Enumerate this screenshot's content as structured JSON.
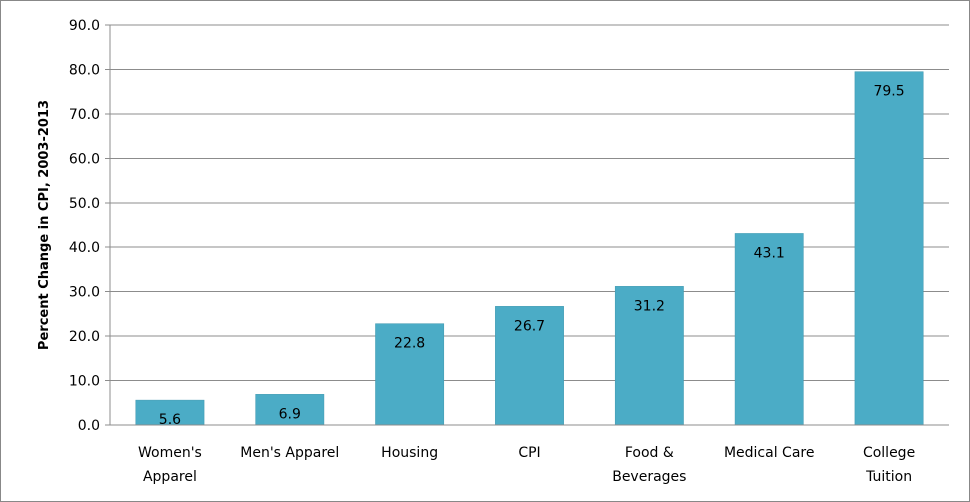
{
  "chart_data": {
    "type": "bar",
    "title": "",
    "xlabel": "",
    "ylabel": "Percent Change in CPI, 2003-2013",
    "ylim": [
      0,
      90
    ],
    "yticks": [
      "0.0",
      "10.0",
      "20.0",
      "30.0",
      "40.0",
      "50.0",
      "60.0",
      "70.0",
      "80.0",
      "90.0"
    ],
    "grid": "horizontal",
    "legend": "none",
    "bar_color": "#4bacc6",
    "categories": [
      [
        "Women's",
        "Apparel"
      ],
      [
        "Men's Apparel"
      ],
      [
        "Housing"
      ],
      [
        "CPI"
      ],
      [
        "Food &",
        "Beverages"
      ],
      [
        "Medical Care"
      ],
      [
        "College",
        "Tuition"
      ]
    ],
    "values": [
      5.6,
      6.9,
      22.8,
      26.7,
      31.2,
      43.1,
      79.5
    ],
    "data_labels": [
      "5.6",
      "6.9",
      "22.8",
      "26.7",
      "31.2",
      "43.1",
      "79.5"
    ]
  }
}
